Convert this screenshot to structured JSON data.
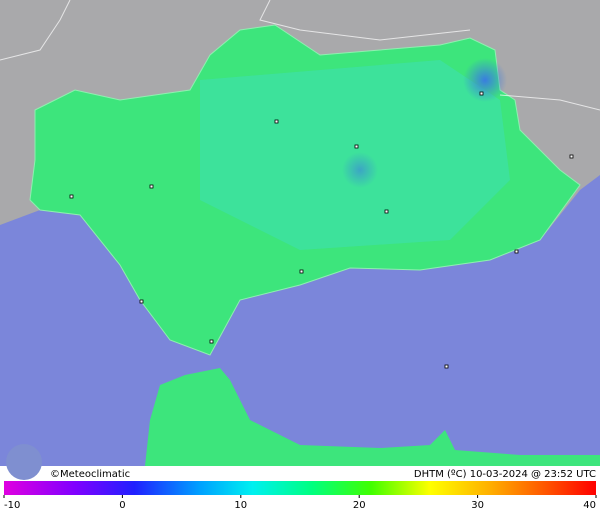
{
  "map": {
    "credit": "©Meteoclimatic",
    "caption": "DHTM (ºC) 10-03-2024 @ 23:52 UTC"
  },
  "scale": {
    "ticks": [
      -10,
      0,
      10,
      20,
      30,
      40
    ]
  }
}
